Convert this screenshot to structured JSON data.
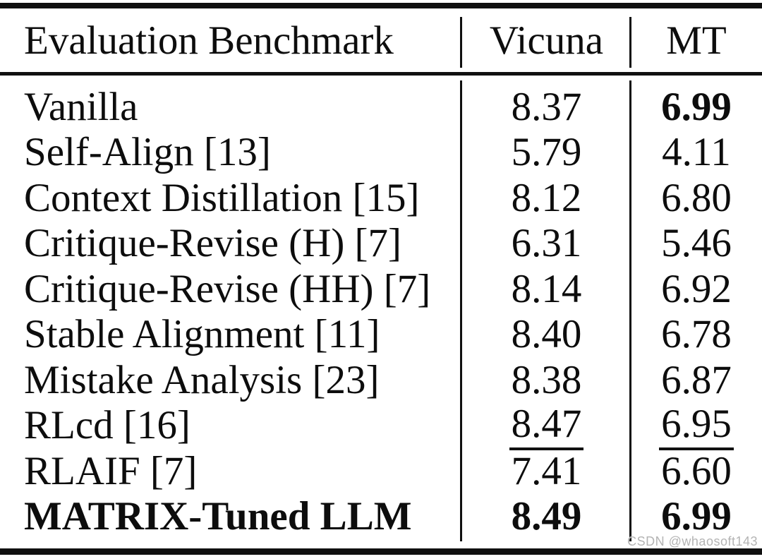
{
  "table": {
    "columns": [
      {
        "label": "Evaluation Benchmark"
      },
      {
        "label": "Vicuna"
      },
      {
        "label": "MT"
      }
    ],
    "rows": [
      {
        "benchmark": "Vanilla",
        "benchmark_style": "normal",
        "vicuna": {
          "text": "8.37",
          "style": "normal"
        },
        "mt": {
          "text": "6.99",
          "style": "bold"
        }
      },
      {
        "benchmark": "Self-Align [13]",
        "benchmark_style": "normal",
        "vicuna": {
          "text": "5.79",
          "style": "normal"
        },
        "mt": {
          "text": "4.11",
          "style": "normal"
        }
      },
      {
        "benchmark": "Context Distillation [15]",
        "benchmark_style": "normal",
        "vicuna": {
          "text": "8.12",
          "style": "normal"
        },
        "mt": {
          "text": "6.80",
          "style": "normal"
        }
      },
      {
        "benchmark": "Critique-Revise (H) [7]",
        "benchmark_style": "normal",
        "vicuna": {
          "text": "6.31",
          "style": "normal"
        },
        "mt": {
          "text": "5.46",
          "style": "normal"
        }
      },
      {
        "benchmark": "Critique-Revise (HH) [7]",
        "benchmark_style": "normal",
        "vicuna": {
          "text": "8.14",
          "style": "normal"
        },
        "mt": {
          "text": "6.92",
          "style": "normal"
        }
      },
      {
        "benchmark": "Stable Alignment [11]",
        "benchmark_style": "normal",
        "vicuna": {
          "text": "8.40",
          "style": "normal"
        },
        "mt": {
          "text": "6.78",
          "style": "normal"
        }
      },
      {
        "benchmark": "Mistake Analysis [23]",
        "benchmark_style": "normal",
        "vicuna": {
          "text": "8.38",
          "style": "normal"
        },
        "mt": {
          "text": "6.87",
          "style": "normal"
        }
      },
      {
        "benchmark": "RLcd [16]",
        "benchmark_style": "normal",
        "vicuna": {
          "text": "8.47",
          "style": "underline"
        },
        "mt": {
          "text": "6.95",
          "style": "underline"
        }
      },
      {
        "benchmark": "RLAIF [7]",
        "benchmark_style": "normal",
        "vicuna": {
          "text": "7.41",
          "style": "normal"
        },
        "mt": {
          "text": "6.60",
          "style": "normal"
        }
      },
      {
        "benchmark": "MATRIX-Tuned LLM",
        "benchmark_style": "bold",
        "vicuna": {
          "text": "8.49",
          "style": "bold"
        },
        "mt": {
          "text": "6.99",
          "style": "bold"
        }
      }
    ]
  },
  "watermark": {
    "text": "CSDN @whaosoft143"
  },
  "colors": {
    "background": "#ffffff",
    "text": "#0d0d0d",
    "rule": "#101010",
    "watermark": "#b4b4b4"
  }
}
